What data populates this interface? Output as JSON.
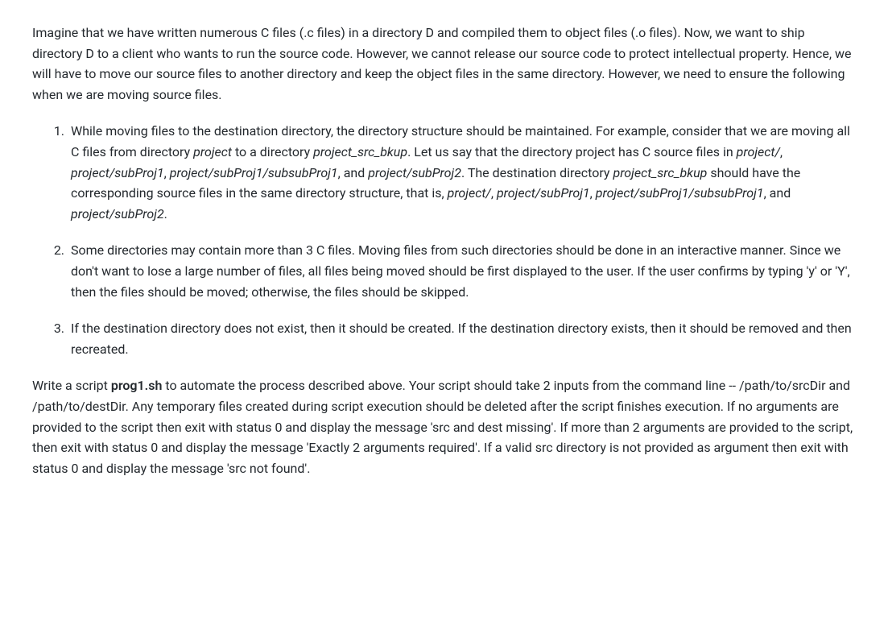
{
  "document": {
    "background_color": "#ffffff",
    "text_color": "#24292e",
    "font_size": 16,
    "line_height": 1.6,
    "intro_paragraph": {
      "text": "Imagine that we have written numerous C files (.c files) in a directory D and compiled them to object files (.o files). Now, we want to ship directory D to a client who wants to run the source code. However, we cannot release our source code to protect intellectual property. Hence, we will have to move our source files to another directory and keep the object files in the same directory. However, we need to ensure the following when we are moving source files."
    },
    "requirements": [
      {
        "segments": [
          {
            "text": "While moving files to the destination directory, the directory structure should be maintained. For example, consider that we are moving all C files from directory ",
            "style": "normal"
          },
          {
            "text": "project",
            "style": "italic"
          },
          {
            "text": " to a directory ",
            "style": "normal"
          },
          {
            "text": "project_src_bkup",
            "style": "italic"
          },
          {
            "text": ". Let us say that the directory project has C source files in ",
            "style": "normal"
          },
          {
            "text": "project/",
            "style": "italic"
          },
          {
            "text": ", ",
            "style": "normal"
          },
          {
            "text": "project/subProj1",
            "style": "italic"
          },
          {
            "text": ", ",
            "style": "normal"
          },
          {
            "text": "project/subProj1/subsubProj1",
            "style": "italic"
          },
          {
            "text": ", and ",
            "style": "normal"
          },
          {
            "text": "project/subProj2",
            "style": "italic"
          },
          {
            "text": ". The destination directory ",
            "style": "normal"
          },
          {
            "text": "project_src_bkup",
            "style": "italic"
          },
          {
            "text": " should have the corresponding source files in the same directory structure, that is, ",
            "style": "normal"
          },
          {
            "text": "project/",
            "style": "italic"
          },
          {
            "text": ", ",
            "style": "normal"
          },
          {
            "text": "project/subProj1",
            "style": "italic"
          },
          {
            "text": ", ",
            "style": "normal"
          },
          {
            "text": "project/subProj1/subsubProj1",
            "style": "italic"
          },
          {
            "text": ", and ",
            "style": "normal"
          },
          {
            "text": "project/subProj2",
            "style": "italic"
          },
          {
            "text": ".",
            "style": "normal"
          }
        ]
      },
      {
        "segments": [
          {
            "text": "Some directories may contain more than 3 C files. Moving files from such directories should be done in an interactive manner. Since we don't want to lose a large number of files, all files being moved should be first displayed to the user. If the user confirms by typing 'y' or 'Y', then the files should be moved; otherwise, the files should be skipped.",
            "style": "normal"
          }
        ]
      },
      {
        "segments": [
          {
            "text": "If the destination directory does not exist, then it should be created. If the destination directory exists, then it should be removed and then recreated.",
            "style": "normal"
          }
        ]
      }
    ],
    "closing_paragraph": {
      "segments": [
        {
          "text": "Write a script ",
          "style": "normal"
        },
        {
          "text": "prog1.sh",
          "style": "bold"
        },
        {
          "text": " to automate the process described above. Your script should take 2 inputs from the command line -- /path/to/srcDir and /path/to/destDir. Any temporary files created during script execution should be deleted after the script finishes execution. If no arguments are provided to the script then exit with status 0 and display the message 'src and dest missing'. If more than 2 arguments are provided to the script, then exit with status 0 and display the message 'Exactly 2 arguments required'. If a valid src directory is not provided as argument then exit with status 0 and display the message 'src not found'.",
          "style": "normal"
        }
      ]
    }
  }
}
